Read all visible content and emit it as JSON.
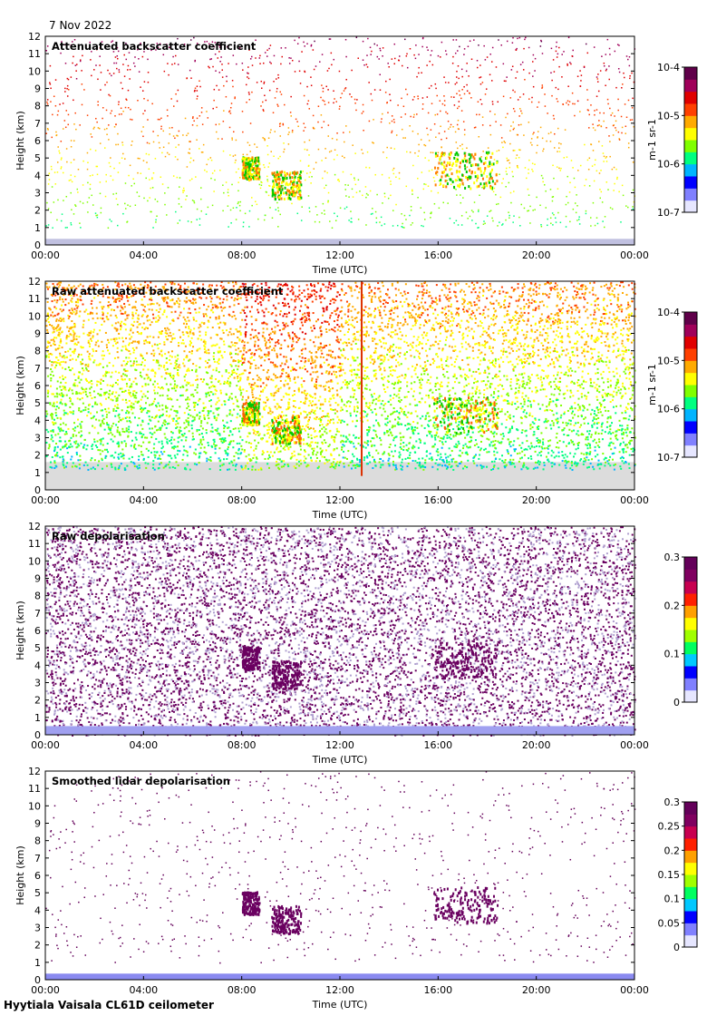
{
  "date": "7 Nov 2022",
  "footer": "Hyytiala Vaisala CL61D ceilometer",
  "chart_data": [
    {
      "type": "heatmap",
      "title": "Attenuated backscatter coefficient",
      "xlabel": "Time (UTC)",
      "ylabel": "Height (km)",
      "x_ticks": [
        "00:00",
        "04:00",
        "08:00",
        "12:00",
        "16:00",
        "20:00",
        "00:00"
      ],
      "y_ticks": [
        "0",
        "1",
        "2",
        "3",
        "4",
        "5",
        "6",
        "7",
        "8",
        "9",
        "10",
        "11",
        "12"
      ],
      "ylim": [
        0,
        12
      ],
      "colorbar": {
        "scale": "log",
        "range": [
          1e-07,
          0.0001
        ],
        "ticks": [
          "10-7",
          "10-6",
          "10-5",
          "10-4"
        ],
        "label": "m-1 sr-1"
      },
      "features": [
        {
          "name": "cloud",
          "t_start": 8.0,
          "t_end": 8.7,
          "h_bottom": 3.8,
          "h_top": 5.1
        },
        {
          "name": "cloud",
          "t_start": 9.2,
          "t_end": 10.4,
          "h_bottom": 2.7,
          "h_top": 4.3
        },
        {
          "name": "cloud",
          "t_start": 15.8,
          "t_end": 18.4,
          "h_bottom": 3.3,
          "h_top": 5.4
        }
      ]
    },
    {
      "type": "heatmap",
      "title": "Raw attenuated backscatter coefficient",
      "xlabel": "Time (UTC)",
      "ylabel": "Height (km)",
      "x_ticks": [
        "00:00",
        "04:00",
        "08:00",
        "12:00",
        "16:00",
        "20:00",
        "00:00"
      ],
      "y_ticks": [
        "0",
        "1",
        "2",
        "3",
        "4",
        "5",
        "6",
        "7",
        "8",
        "9",
        "10",
        "11",
        "12"
      ],
      "ylim": [
        0,
        12
      ],
      "colorbar": {
        "scale": "log",
        "range": [
          1e-07,
          0.0001
        ],
        "ticks": [
          "10-7",
          "10-6",
          "10-5",
          "10-4"
        ],
        "label": "m-1 sr-1"
      }
    },
    {
      "type": "heatmap",
      "title": "Raw depolarisation",
      "xlabel": "Time (UTC)",
      "ylabel": "Height (km)",
      "x_ticks": [
        "00:00",
        "04:00",
        "08:00",
        "12:00",
        "16:00",
        "20:00",
        "00:00"
      ],
      "y_ticks": [
        "0",
        "1",
        "2",
        "3",
        "4",
        "5",
        "6",
        "7",
        "8",
        "9",
        "10",
        "11",
        "12"
      ],
      "ylim": [
        0,
        12
      ],
      "colorbar": {
        "scale": "linear",
        "range": [
          0,
          0.3
        ],
        "ticks": [
          "0",
          "0.1",
          "0.2",
          "0.3"
        ],
        "label": ""
      }
    },
    {
      "type": "heatmap",
      "title": "Smoothed lidar depolarisation",
      "xlabel": "Time (UTC)",
      "ylabel": "Height (km)",
      "x_ticks": [
        "00:00",
        "04:00",
        "08:00",
        "12:00",
        "16:00",
        "20:00",
        "00:00"
      ],
      "y_ticks": [
        "0",
        "1",
        "2",
        "3",
        "4",
        "5",
        "6",
        "7",
        "8",
        "9",
        "10",
        "11",
        "12"
      ],
      "ylim": [
        0,
        12
      ],
      "colorbar": {
        "scale": "linear",
        "range": [
          0,
          0.3
        ],
        "ticks": [
          "0",
          "0.05",
          "0.1",
          "0.15",
          "0.2",
          "0.25",
          "0.3"
        ],
        "label": ""
      }
    }
  ]
}
